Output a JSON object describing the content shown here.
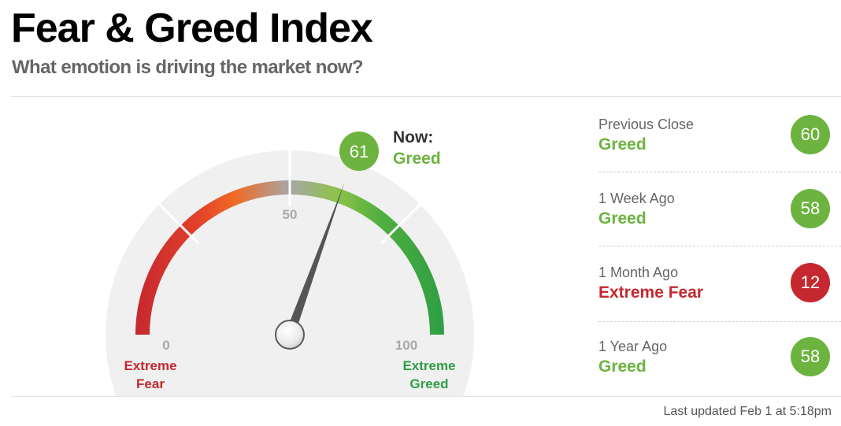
{
  "header": {
    "title": "Fear & Greed Index",
    "subtitle": "What emotion is driving the market now?"
  },
  "gauge": {
    "value": 61,
    "value_label": "61",
    "now_label": "Now:",
    "status": "Greed",
    "min_label": "0",
    "mid_label": "50",
    "max_label": "100",
    "left_caption": [
      "Extreme",
      "Fear"
    ],
    "right_caption": [
      "Extreme",
      "Greed"
    ],
    "colors": {
      "greed": "#6db33f",
      "extreme_fear": "#c5282f",
      "fear": "#f06a24",
      "extreme_greed": "#2e9e44"
    }
  },
  "history": [
    {
      "label": "Previous Close",
      "status": "Greed",
      "value": "60",
      "color": "#6db33f"
    },
    {
      "label": "1 Week Ago",
      "status": "Greed",
      "value": "58",
      "color": "#6db33f"
    },
    {
      "label": "1 Month Ago",
      "status": "Extreme Fear",
      "value": "12",
      "color": "#c5282f"
    },
    {
      "label": "1 Year Ago",
      "status": "Greed",
      "value": "58",
      "color": "#6db33f"
    }
  ],
  "footer": {
    "updated": "Last updated Feb 1 at 5:18pm"
  }
}
